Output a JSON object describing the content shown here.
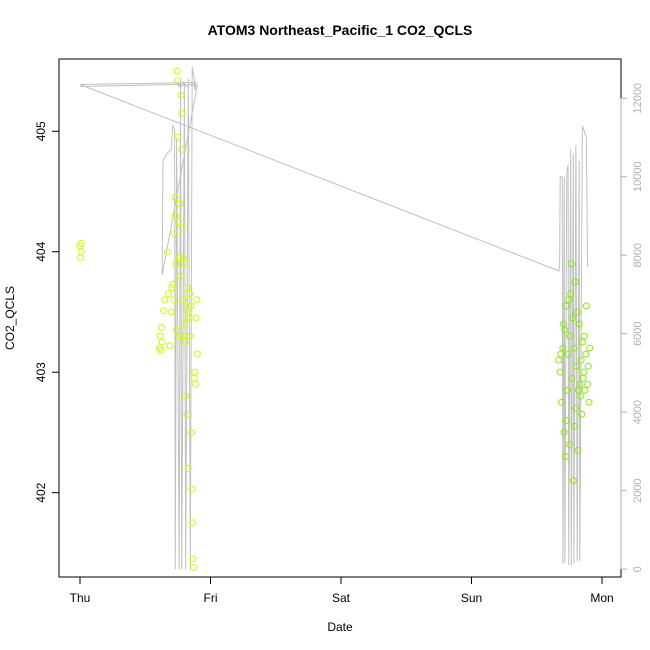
{
  "chart_data": {
    "type": "scatter",
    "title": "ATOM3 Northeast_Pacific_1 CO2_QCLS",
    "xlabel": "Date",
    "ylabel": "CO2_QCLS",
    "x_ticks": [
      "Thu",
      "Fri",
      "Sat",
      "Sun",
      "Mon"
    ],
    "x_range_days": [
      0,
      4
    ],
    "ylim": [
      401.3,
      405.6
    ],
    "y_ticks": [
      402,
      403,
      404,
      405
    ],
    "y2lim": [
      -200,
      13000
    ],
    "y2_ticks": [
      0,
      2000,
      4000,
      6000,
      8000,
      10000,
      12000
    ],
    "colors": {
      "fri_points": "#ccff00",
      "mon_points": "#88ee00",
      "altitude_line": "#c0c0c0",
      "right_axis": "#b0b0b0"
    },
    "series": [
      {
        "role": "co2",
        "points": [
          [
            0.0,
            404.05
          ],
          [
            0.005,
            403.95
          ],
          [
            0.01,
            404.0
          ],
          [
            0.01,
            404.07
          ],
          [
            0.61,
            403.2
          ],
          [
            0.615,
            403.3
          ],
          [
            0.62,
            403.18
          ],
          [
            0.625,
            403.37
          ],
          [
            0.63,
            403.25
          ],
          [
            0.64,
            403.51
          ],
          [
            0.65,
            403.6
          ],
          [
            0.67,
            404.0
          ],
          [
            0.68,
            403.65
          ],
          [
            0.69,
            403.22
          ],
          [
            0.7,
            403.5
          ],
          [
            0.705,
            403.7
          ],
          [
            0.71,
            403.73
          ],
          [
            0.72,
            403.6
          ],
          [
            0.725,
            404.15
          ],
          [
            0.73,
            404.45
          ],
          [
            0.73,
            404.3
          ],
          [
            0.735,
            403.9
          ],
          [
            0.74,
            403.35
          ],
          [
            0.745,
            405.5
          ],
          [
            0.75,
            405.42
          ],
          [
            0.75,
            404.95
          ],
          [
            0.755,
            404.25
          ],
          [
            0.76,
            403.95
          ],
          [
            0.76,
            403.3
          ],
          [
            0.765,
            404.4
          ],
          [
            0.77,
            403.8
          ],
          [
            0.775,
            405.3
          ],
          [
            0.78,
            405.15
          ],
          [
            0.78,
            404.85
          ],
          [
            0.785,
            404.2
          ],
          [
            0.79,
            403.95
          ],
          [
            0.79,
            403.6
          ],
          [
            0.795,
            403.3
          ],
          [
            0.8,
            403.4
          ],
          [
            0.8,
            403.9
          ],
          [
            0.805,
            403.25
          ],
          [
            0.81,
            402.8
          ],
          [
            0.815,
            403.55
          ],
          [
            0.82,
            402.65
          ],
          [
            0.825,
            403.7
          ],
          [
            0.83,
            402.2
          ],
          [
            0.83,
            403.45
          ],
          [
            0.835,
            403.5
          ],
          [
            0.84,
            403.65
          ],
          [
            0.845,
            403.3
          ],
          [
            0.85,
            403.55
          ],
          [
            0.855,
            402.5
          ],
          [
            0.86,
            402.03
          ],
          [
            0.862,
            401.75
          ],
          [
            0.865,
            401.45
          ],
          [
            0.87,
            401.38
          ],
          [
            0.875,
            402.95
          ],
          [
            0.88,
            403.0
          ],
          [
            0.885,
            402.9
          ],
          [
            0.89,
            403.45
          ],
          [
            0.895,
            403.6
          ],
          [
            0.9,
            403.15
          ],
          [
            3.67,
            403.1
          ],
          [
            3.68,
            403.0
          ],
          [
            3.685,
            403.15
          ],
          [
            3.69,
            402.75
          ],
          [
            3.7,
            403.2
          ],
          [
            3.705,
            403.4
          ],
          [
            3.71,
            402.5
          ],
          [
            3.715,
            403.35
          ],
          [
            3.72,
            402.3
          ],
          [
            3.725,
            403.55
          ],
          [
            3.73,
            402.6
          ],
          [
            3.735,
            402.85
          ],
          [
            3.74,
            403.15
          ],
          [
            3.745,
            403.6
          ],
          [
            3.75,
            402.4
          ],
          [
            3.755,
            403.3
          ],
          [
            3.76,
            403.65
          ],
          [
            3.765,
            403.9
          ],
          [
            3.77,
            402.95
          ],
          [
            3.775,
            403.45
          ],
          [
            3.78,
            402.1
          ],
          [
            3.785,
            403.2
          ],
          [
            3.79,
            402.55
          ],
          [
            3.795,
            403.75
          ],
          [
            3.8,
            402.7
          ],
          [
            3.805,
            403.05
          ],
          [
            3.81,
            403.5
          ],
          [
            3.815,
            402.35
          ],
          [
            3.82,
            402.85
          ],
          [
            3.825,
            403.4
          ],
          [
            3.83,
            402.9
          ],
          [
            3.835,
            402.8
          ],
          [
            3.84,
            403.1
          ],
          [
            3.845,
            402.65
          ],
          [
            3.85,
            403.25
          ],
          [
            3.855,
            402.95
          ],
          [
            3.86,
            403.0
          ],
          [
            3.865,
            403.3
          ],
          [
            3.87,
            402.85
          ],
          [
            3.875,
            403.15
          ],
          [
            3.88,
            403.55
          ],
          [
            3.89,
            402.9
          ],
          [
            3.895,
            403.05
          ],
          [
            3.9,
            402.75
          ],
          [
            3.905,
            403.2
          ]
        ]
      },
      {
        "role": "altitude",
        "axis": "right",
        "points": [
          [
            0.0,
            12300
          ],
          [
            0.75,
            12350
          ],
          [
            0.755,
            12300
          ],
          [
            0.76,
            12400
          ],
          [
            0.765,
            12300
          ],
          [
            0.77,
            12350
          ],
          [
            0.78,
            12300
          ],
          [
            0.79,
            12400
          ],
          [
            0.8,
            12300
          ],
          [
            0.81,
            12350
          ],
          [
            0.82,
            12300
          ],
          [
            0.83,
            12350
          ],
          [
            0.85,
            12350
          ],
          [
            0.86,
            12300
          ],
          [
            0.87,
            12350
          ],
          [
            0.88,
            12300
          ],
          [
            0.89,
            12300
          ],
          [
            0.895,
            12300
          ],
          [
            0.9,
            12350
          ],
          [
            0.63,
            7500
          ],
          [
            0.635,
            10400
          ],
          [
            0.67,
            10600
          ],
          [
            0.7,
            10700
          ],
          [
            0.71,
            11300
          ],
          [
            0.725,
            11200
          ],
          [
            0.73,
            0
          ],
          [
            0.74,
            11000
          ],
          [
            0.76,
            0
          ],
          [
            0.77,
            12500
          ],
          [
            0.78,
            0
          ],
          [
            0.8,
            12400
          ],
          [
            0.81,
            0
          ],
          [
            0.83,
            12500
          ],
          [
            0.845,
            0
          ],
          [
            0.86,
            12800
          ],
          [
            0.875,
            12500
          ],
          [
            0.88,
            12200
          ],
          [
            0.89,
            12400
          ],
          [
            0.0,
            12350
          ],
          [
            3.67,
            7600
          ],
          [
            3.675,
            7700
          ],
          [
            3.68,
            10000
          ],
          [
            3.695,
            10000
          ],
          [
            3.7,
            150
          ],
          [
            3.71,
            10000
          ],
          [
            3.715,
            150
          ],
          [
            3.73,
            10100
          ],
          [
            3.74,
            10300
          ],
          [
            3.745,
            100
          ],
          [
            3.76,
            10700
          ],
          [
            3.765,
            100
          ],
          [
            3.78,
            10600
          ],
          [
            3.785,
            150
          ],
          [
            3.8,
            10800
          ],
          [
            3.81,
            200
          ],
          [
            3.825,
            10400
          ],
          [
            3.83,
            200
          ],
          [
            3.85,
            11300
          ],
          [
            3.87,
            11100
          ],
          [
            3.88,
            11000
          ],
          [
            3.89,
            7700
          ]
        ]
      }
    ]
  }
}
